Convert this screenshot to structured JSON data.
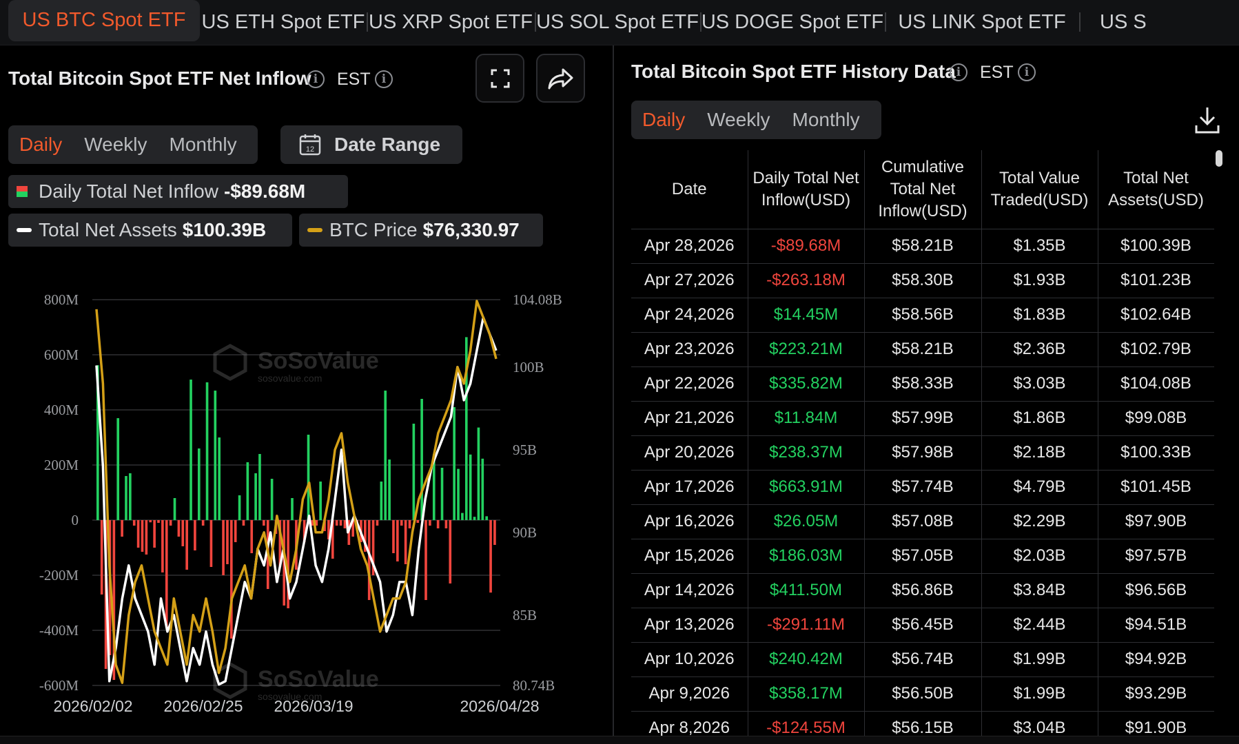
{
  "tabs": [
    {
      "label": "US BTC Spot ETF",
      "active": true
    },
    {
      "label": "US ETH Spot ETF",
      "active": false
    },
    {
      "label": "US XRP Spot ETF",
      "active": false
    },
    {
      "label": "US SOL Spot ETF",
      "active": false
    },
    {
      "label": "US DOGE Spot ETF",
      "active": false
    },
    {
      "label": "US LINK Spot ETF",
      "active": false
    },
    {
      "label": "US S",
      "active": false
    }
  ],
  "left": {
    "title": "Total Bitcoin Spot ETF Net Inflow",
    "timezone": "EST",
    "periods": [
      "Daily",
      "Weekly",
      "Monthly"
    ],
    "active_period": "Daily",
    "date_range_label": "Date Range",
    "calendar_day": "12",
    "legend": {
      "inflow_label": "Daily Total Net Inflow",
      "inflow_value": "-$89.68M",
      "assets_label": "Total Net Assets",
      "assets_value": "$100.39B",
      "price_label": "BTC Price",
      "price_value": "$76,330.97"
    },
    "watermark": "SoSoValue",
    "watermark_sub": "sosovalue.com"
  },
  "right": {
    "title": "Total Bitcoin Spot ETF History Data",
    "timezone": "EST",
    "periods": [
      "Daily",
      "Weekly",
      "Monthly"
    ],
    "active_period": "Daily",
    "columns": [
      "Date",
      "Daily Total Net Inflow(USD)",
      "Cumulative Total Net Inflow(USD)",
      "Total Value Traded(USD)",
      "Total Net Assets(USD)"
    ],
    "rows": [
      [
        "Apr 28,2026",
        "-$89.68M",
        "$58.21B",
        "$1.35B",
        "$100.39B"
      ],
      [
        "Apr 27,2026",
        "-$263.18M",
        "$58.30B",
        "$1.93B",
        "$101.23B"
      ],
      [
        "Apr 24,2026",
        "$14.45M",
        "$58.56B",
        "$1.83B",
        "$102.64B"
      ],
      [
        "Apr 23,2026",
        "$223.21M",
        "$58.21B",
        "$2.36B",
        "$102.79B"
      ],
      [
        "Apr 22,2026",
        "$335.82M",
        "$58.33B",
        "$3.03B",
        "$104.08B"
      ],
      [
        "Apr 21,2026",
        "$11.84M",
        "$57.99B",
        "$1.86B",
        "$99.08B"
      ],
      [
        "Apr 20,2026",
        "$238.37M",
        "$57.98B",
        "$2.18B",
        "$100.33B"
      ],
      [
        "Apr 17,2026",
        "$663.91M",
        "$57.74B",
        "$4.79B",
        "$101.45B"
      ],
      [
        "Apr 16,2026",
        "$26.05M",
        "$57.08B",
        "$2.29B",
        "$97.90B"
      ],
      [
        "Apr 15,2026",
        "$186.03M",
        "$57.05B",
        "$2.03B",
        "$97.57B"
      ],
      [
        "Apr 14,2026",
        "$411.50M",
        "$56.86B",
        "$3.84B",
        "$96.56B"
      ],
      [
        "Apr 13,2026",
        "-$291.11M",
        "$56.45B",
        "$2.44B",
        "$94.51B"
      ],
      [
        "Apr 10,2026",
        "$240.42M",
        "$56.74B",
        "$1.99B",
        "$94.92B"
      ],
      [
        "Apr 9,2026",
        "$358.17M",
        "$56.50B",
        "$1.99B",
        "$93.29B"
      ],
      [
        "Apr 8,2026",
        "-$124.55M",
        "$56.15B",
        "$3.04B",
        "$91.90B"
      ]
    ]
  },
  "colors": {
    "accent": "#f25a2c",
    "positive": "#23d160",
    "negative": "#f0453d",
    "assets_line": "#ffffff",
    "price_line": "#d4a017",
    "grid": "#3a3b3e"
  },
  "chart_data": {
    "type": "bar",
    "x_ticks": [
      "2026/02/02",
      "2026/02/25",
      "2026/03/19",
      "2026/04/28"
    ],
    "y_left_ticks": [
      "800M",
      "600M",
      "400M",
      "200M",
      "0",
      "-200M",
      "-400M",
      "-600M"
    ],
    "y_left_range": [
      -600,
      800
    ],
    "y_right_ticks": [
      "104.08B",
      "100B",
      "95B",
      "90B",
      "85B",
      "80.74B"
    ],
    "y_right_range": [
      80.74,
      104.08
    ],
    "series": [
      {
        "name": "Daily Total Net Inflow",
        "unit": "M",
        "values": [
          562,
          -270,
          -540,
          -490,
          -580,
          370,
          -60,
          160,
          170,
          -20,
          -100,
          -115,
          -125,
          -8,
          -100,
          -10,
          -190,
          -390,
          -20,
          80,
          -60,
          -95,
          -180,
          510,
          -110,
          260,
          -20,
          500,
          -170,
          470,
          300,
          -200,
          -160,
          -430,
          -80,
          90,
          -20,
          210,
          -120,
          170,
          240,
          -20,
          -250,
          150,
          -50,
          -170,
          -310,
          -320,
          80,
          -180,
          -5,
          -80,
          310,
          -20,
          -20,
          140,
          -40,
          -70,
          -140,
          -20,
          -20,
          -30,
          -90,
          -60,
          -20,
          -80,
          -115,
          -290,
          -200,
          -20,
          140,
          470,
          220,
          -120,
          -150,
          -20,
          -160,
          -30,
          350,
          -10,
          440,
          -290,
          -20,
          240,
          -30,
          190,
          -30,
          -230,
          410,
          186,
          26,
          664,
          238,
          12,
          336,
          223,
          14,
          -263,
          -90
        ]
      },
      {
        "name": "Total Net Assets",
        "unit": "B",
        "values": [
          100.1,
          94,
          81,
          83,
          86,
          88,
          86,
          85,
          84,
          82,
          86,
          84,
          85,
          83,
          81,
          83,
          82,
          84,
          82,
          80.8,
          81,
          83,
          85,
          87,
          86,
          89,
          88,
          90,
          87,
          89,
          86,
          87,
          89,
          91,
          88,
          87,
          89,
          92,
          95,
          90,
          91,
          90,
          89,
          88,
          87,
          84,
          85,
          87,
          87,
          85,
          89,
          92,
          94,
          95,
          96,
          97,
          100,
          98,
          99,
          101,
          103,
          102,
          101
        ]
      },
      {
        "name": "BTC Price",
        "unit": "B (right axis)",
        "values": [
          103.5,
          99,
          88,
          82,
          80.9,
          85,
          87,
          88,
          86,
          84,
          83,
          82,
          86,
          84,
          82,
          85,
          84,
          86,
          84,
          81.5,
          83,
          86,
          87,
          88,
          86,
          89,
          90,
          88,
          91,
          89,
          87,
          89,
          92,
          93,
          90,
          90,
          92,
          95,
          96,
          93,
          91,
          89,
          88,
          86,
          84,
          85,
          86,
          86,
          87,
          90,
          92,
          93,
          94,
          96,
          97,
          98,
          100,
          99,
          101,
          104,
          103,
          102,
          100.5
        ]
      }
    ]
  }
}
